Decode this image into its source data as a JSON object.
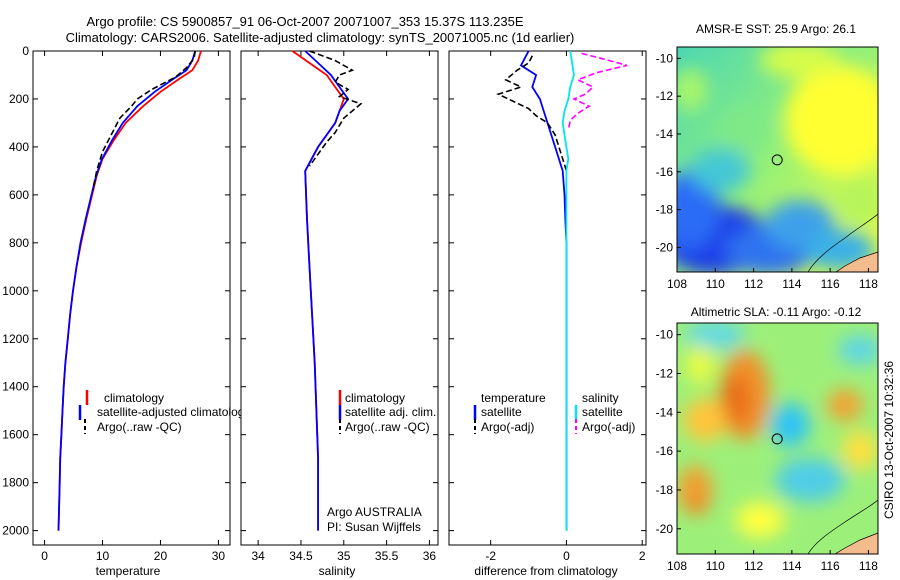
{
  "figure": {
    "title_line1": "Argo profile: CS 5900857_91 06-Oct-2007 20071007_353 15.37S 113.235E",
    "title_line2": "Climatology: CARS2006. Satellite-adjusted climatology: synTS_20071005.nc (1d earlier)",
    "side_label": "CSIRO 13-Oct-2007 10:32:36",
    "argo_info_line1": "Argo AUSTRALIA",
    "argo_info_line2": "PI: Susan Wijffels"
  },
  "colors": {
    "climatology": "#ff0000",
    "satellite": "#0000ff",
    "argo": "#000000",
    "satellite_salt": "#00e5ee",
    "argo_salt": "#ff00ff",
    "land": "#f4bc8c"
  },
  "chart_data": [
    {
      "type": "line",
      "id": "temperature",
      "xlabel": "temperature",
      "ylabel": "",
      "xlim": [
        -2,
        32
      ],
      "ylim": [
        2060,
        0
      ],
      "xticks": [
        "0",
        "10",
        "20",
        "30"
      ],
      "yticks": [
        "0",
        "200",
        "400",
        "600",
        "800",
        "1000",
        "1200",
        "1400",
        "1600",
        "1800",
        "2000"
      ],
      "legend": [
        "climatology",
        "satellite-adjusted climatology",
        "Argo(..raw -QC)"
      ],
      "series": [
        {
          "name": "climatology",
          "color": "#ff0000",
          "points": [
            [
              27.0,
              0
            ],
            [
              26.5,
              40
            ],
            [
              25.5,
              80
            ],
            [
              23,
              120
            ],
            [
              20,
              170
            ],
            [
              17,
              230
            ],
            [
              14,
              300
            ],
            [
              12,
              370
            ],
            [
              10,
              450
            ],
            [
              9,
              520
            ],
            [
              8.2,
              600
            ],
            [
              7.2,
              700
            ],
            [
              6.3,
              800
            ],
            [
              5.5,
              900
            ],
            [
              4.9,
              1000
            ],
            [
              4.4,
              1100
            ],
            [
              4.0,
              1200
            ],
            [
              3.6,
              1300
            ],
            [
              3.3,
              1400
            ],
            [
              3.1,
              1500
            ],
            [
              2.9,
              1600
            ],
            [
              2.7,
              1700
            ],
            [
              2.6,
              1800
            ],
            [
              2.5,
              1900
            ],
            [
              2.4,
              2000
            ]
          ]
        },
        {
          "name": "satellite-adjusted climatology",
          "color": "#0000ff",
          "points": [
            [
              26.0,
              0
            ],
            [
              25.5,
              40
            ],
            [
              24.5,
              80
            ],
            [
              22,
              120
            ],
            [
              19,
              170
            ],
            [
              16,
              230
            ],
            [
              13.5,
              300
            ],
            [
              11.7,
              370
            ],
            [
              9.9,
              450
            ],
            [
              8.9,
              520
            ],
            [
              8.1,
              600
            ],
            [
              7.1,
              700
            ],
            [
              6.2,
              800
            ],
            [
              5.5,
              900
            ],
            [
              4.9,
              1000
            ],
            [
              4.4,
              1100
            ],
            [
              4.0,
              1200
            ],
            [
              3.6,
              1300
            ],
            [
              3.3,
              1400
            ],
            [
              3.1,
              1500
            ],
            [
              2.9,
              1600
            ],
            [
              2.7,
              1700
            ],
            [
              2.6,
              1800
            ],
            [
              2.5,
              1900
            ],
            [
              2.4,
              2000
            ]
          ]
        },
        {
          "name": "Argo(..raw -QC)",
          "color": "#000000",
          "dashed": true,
          "points": [
            [
              26.0,
              0
            ],
            [
              25.8,
              30
            ],
            [
              24.5,
              70
            ],
            [
              22.5,
              110
            ],
            [
              18.5,
              160
            ],
            [
              16,
              200
            ],
            [
              15,
              230
            ],
            [
              13,
              280
            ],
            [
              11.5,
              350
            ],
            [
              10,
              420
            ],
            [
              9,
              500
            ],
            [
              8.3,
              580
            ]
          ]
        }
      ]
    },
    {
      "type": "line",
      "id": "salinity",
      "xlabel": "salinity",
      "ylabel": "",
      "xlim": [
        33.8,
        36.1
      ],
      "ylim": [
        2060,
        0
      ],
      "xticks": [
        "34",
        "34.5",
        "35",
        "35.5",
        "36"
      ],
      "yticks": [],
      "legend": [
        "climatology",
        "satellite adj. clim.",
        "Argo(..raw -QC)"
      ],
      "series": [
        {
          "name": "climatology",
          "color": "#ff0000",
          "points": [
            [
              34.4,
              0
            ],
            [
              34.6,
              50
            ],
            [
              34.8,
              100
            ],
            [
              34.9,
              150
            ],
            [
              35.0,
              200
            ],
            [
              34.95,
              250
            ],
            [
              34.9,
              300
            ],
            [
              34.8,
              350
            ],
            [
              34.7,
              400
            ],
            [
              34.55,
              500
            ],
            [
              34.57,
              700
            ],
            [
              34.6,
              900
            ],
            [
              34.63,
              1100
            ],
            [
              34.66,
              1300
            ],
            [
              34.68,
              1500
            ],
            [
              34.7,
              1700
            ],
            [
              34.7,
              1900
            ],
            [
              34.7,
              2000
            ]
          ]
        },
        {
          "name": "satellite adj. clim.",
          "color": "#0000ff",
          "points": [
            [
              34.55,
              0
            ],
            [
              34.7,
              50
            ],
            [
              34.85,
              100
            ],
            [
              34.95,
              150
            ],
            [
              35.05,
              200
            ],
            [
              34.95,
              250
            ],
            [
              34.9,
              300
            ],
            [
              34.8,
              350
            ],
            [
              34.7,
              400
            ],
            [
              34.55,
              500
            ],
            [
              34.57,
              700
            ],
            [
              34.6,
              900
            ],
            [
              34.63,
              1100
            ],
            [
              34.66,
              1300
            ],
            [
              34.68,
              1500
            ],
            [
              34.7,
              1700
            ],
            [
              34.7,
              1900
            ],
            [
              34.7,
              2000
            ]
          ]
        },
        {
          "name": "Argo(..raw -QC)",
          "color": "#000000",
          "dashed": true,
          "points": [
            [
              34.6,
              0
            ],
            [
              34.75,
              20
            ],
            [
              34.9,
              40
            ],
            [
              35.0,
              60
            ],
            [
              35.1,
              80
            ],
            [
              34.95,
              100
            ],
            [
              34.9,
              130
            ],
            [
              35.05,
              160
            ],
            [
              34.95,
              190
            ],
            [
              35.2,
              220
            ],
            [
              35.1,
              250
            ],
            [
              35.0,
              280
            ],
            [
              34.95,
              310
            ],
            [
              34.9,
              340
            ],
            [
              34.8,
              380
            ],
            [
              34.7,
              430
            ],
            [
              34.6,
              480
            ]
          ]
        }
      ]
    },
    {
      "type": "line",
      "id": "difference",
      "xlabel": "difference from climatology",
      "ylabel": "",
      "xlim": [
        -3.1,
        2.1
      ],
      "ylim": [
        2060,
        0
      ],
      "xticks": [
        "-2",
        "0",
        "2"
      ],
      "yticks": [],
      "legend_temperature_header": "temperature",
      "legend_salinity_header": "salinity",
      "legend": [
        "satellite",
        "Argo(-adj)",
        "satellite",
        "Argo(-adj)"
      ],
      "series": [
        {
          "name": "temperature satellite",
          "color": "#0000ff",
          "points": [
            [
              -1.0,
              0
            ],
            [
              -1.1,
              30
            ],
            [
              -1.2,
              60
            ],
            [
              -0.8,
              100
            ],
            [
              -0.9,
              150
            ],
            [
              -0.7,
              200
            ],
            [
              -0.6,
              250
            ],
            [
              -0.5,
              300
            ],
            [
              -0.4,
              350
            ],
            [
              -0.3,
              400
            ],
            [
              -0.2,
              450
            ],
            [
              -0.1,
              500
            ],
            [
              -0.05,
              600
            ],
            [
              -0.03,
              700
            ],
            [
              0,
              800
            ],
            [
              0,
              1000
            ],
            [
              0,
              1400
            ],
            [
              0,
              1800
            ],
            [
              0,
              2000
            ]
          ]
        },
        {
          "name": "temperature Argo(-adj)",
          "color": "#000000",
          "dashed": true,
          "points": [
            [
              -0.9,
              20
            ],
            [
              -1.0,
              50
            ],
            [
              -1.3,
              80
            ],
            [
              -1.6,
              120
            ],
            [
              -1.2,
              150
            ],
            [
              -1.8,
              180
            ],
            [
              -1.4,
              210
            ],
            [
              -1.0,
              240
            ],
            [
              -0.8,
              270
            ],
            [
              -0.5,
              300
            ],
            [
              -0.3,
              350
            ],
            [
              -0.2,
              400
            ],
            [
              -0.1,
              450
            ],
            [
              0,
              500
            ]
          ]
        },
        {
          "name": "salinity satellite",
          "color": "#00e5ee",
          "points": [
            [
              0.1,
              0
            ],
            [
              0.15,
              50
            ],
            [
              0.2,
              100
            ],
            [
              0.1,
              150
            ],
            [
              0.05,
              200
            ],
            [
              -0.05,
              250
            ],
            [
              -0.1,
              300
            ],
            [
              -0.05,
              350
            ],
            [
              0,
              400
            ],
            [
              0.05,
              450
            ],
            [
              0,
              500
            ],
            [
              0,
              600
            ],
            [
              0,
              800
            ],
            [
              0,
              1000
            ],
            [
              0,
              1400
            ],
            [
              0,
              1800
            ],
            [
              0,
              2000
            ]
          ]
        },
        {
          "name": "salinity Argo(-adj)",
          "color": "#ff00ff",
          "dashed": true,
          "points": [
            [
              0.4,
              10
            ],
            [
              0.9,
              30
            ],
            [
              1.6,
              60
            ],
            [
              0.8,
              90
            ],
            [
              0.3,
              120
            ],
            [
              0.7,
              150
            ],
            [
              0.5,
              180
            ],
            [
              0.2,
              200
            ],
            [
              0.6,
              230
            ],
            [
              0.3,
              260
            ],
            [
              0.1,
              290
            ],
            [
              0.05,
              330
            ]
          ]
        }
      ]
    },
    {
      "type": "heatmap",
      "id": "amsre_sst",
      "title": "AMSR-E SST: 25.9 Argo: 26.1",
      "xlim": [
        108,
        118.5
      ],
      "ylim": [
        -21.3,
        -9.4
      ],
      "xticks": [
        "108",
        "110",
        "112",
        "114",
        "116",
        "118"
      ],
      "yticks": [
        "-10",
        "-12",
        "-14",
        "-16",
        "-18",
        "-20"
      ],
      "marker": {
        "lon": 113.235,
        "lat": -15.37
      }
    },
    {
      "type": "heatmap",
      "id": "altimetric_sla",
      "title": "Altimetric SLA: -0.11 Argo: -0.12",
      "xlim": [
        108,
        118.5
      ],
      "ylim": [
        -21.3,
        -9.4
      ],
      "xticks": [
        "108",
        "110",
        "112",
        "114",
        "116",
        "118"
      ],
      "yticks": [
        "-10",
        "-12",
        "-14",
        "-16",
        "-18",
        "-20"
      ],
      "marker": {
        "lon": 113.235,
        "lat": -15.37
      }
    }
  ]
}
